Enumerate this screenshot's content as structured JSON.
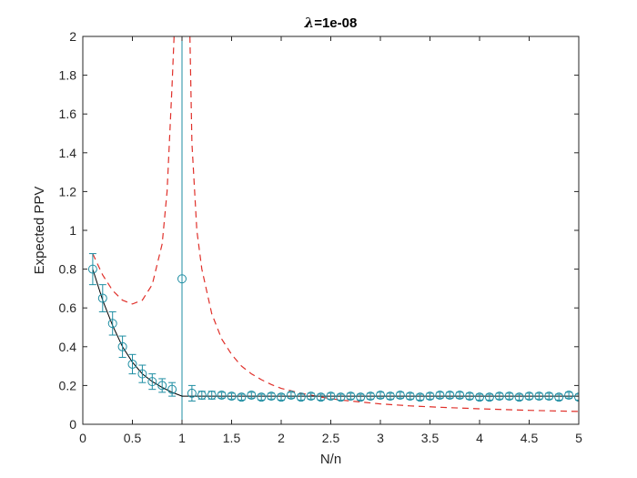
{
  "chart_data": {
    "type": "line",
    "title": "λ=1e-08",
    "title_symbol": "λ",
    "title_rest": "=1e-08",
    "xlabel": "N/n",
    "ylabel": "Expected PPV",
    "xlim": [
      0,
      5
    ],
    "ylim": [
      0,
      2
    ],
    "xticks": [
      0,
      0.5,
      1,
      1.5,
      2,
      2.5,
      3,
      3.5,
      4,
      4.5,
      5
    ],
    "xtick_labels": [
      "0",
      "0.5",
      "1",
      "1.5",
      "2",
      "2.5",
      "3",
      "3.5",
      "4",
      "4.5",
      "5"
    ],
    "yticks": [
      0,
      0.2,
      0.4,
      0.6,
      0.8,
      1,
      1.2,
      1.4,
      1.6,
      1.8,
      2
    ],
    "ytick_labels": [
      "0",
      "0.2",
      "0.4",
      "0.6",
      "0.8",
      "1",
      "1.2",
      "1.4",
      "1.6",
      "1.8",
      "2"
    ],
    "grid": false,
    "vline_x": 1,
    "colors": {
      "marker": "#1f8ea3",
      "errorbar": "#1f8ea3",
      "fit": "#000000",
      "dashed": "#e0302a",
      "vline": "#1f8ea3",
      "axes": "#262626"
    },
    "series": [
      {
        "style": "markers-with-errorbars",
        "x": [
          0.1,
          0.2,
          0.3,
          0.4,
          0.5,
          0.6,
          0.7,
          0.8,
          0.9,
          1.0,
          1.1,
          1.2,
          1.3,
          1.4,
          1.5,
          1.6,
          1.7,
          1.8,
          1.9,
          2.0,
          2.1,
          2.2,
          2.3,
          2.4,
          2.5,
          2.6,
          2.7,
          2.8,
          2.9,
          3.0,
          3.1,
          3.2,
          3.3,
          3.4,
          3.5,
          3.6,
          3.7,
          3.8,
          3.9,
          4.0,
          4.1,
          4.2,
          4.3,
          4.4,
          4.5,
          4.6,
          4.7,
          4.8,
          4.9,
          5.0
        ],
        "y": [
          0.8,
          0.65,
          0.52,
          0.4,
          0.31,
          0.26,
          0.22,
          0.2,
          0.18,
          0.75,
          0.16,
          0.15,
          0.15,
          0.15,
          0.145,
          0.14,
          0.15,
          0.14,
          0.145,
          0.14,
          0.15,
          0.14,
          0.145,
          0.14,
          0.145,
          0.14,
          0.145,
          0.14,
          0.145,
          0.15,
          0.145,
          0.15,
          0.145,
          0.14,
          0.145,
          0.15,
          0.15,
          0.15,
          0.145,
          0.14,
          0.14,
          0.145,
          0.145,
          0.14,
          0.145,
          0.145,
          0.145,
          0.14,
          0.15,
          0.14
        ],
        "err": [
          0.08,
          0.07,
          0.06,
          0.055,
          0.05,
          0.045,
          0.04,
          0.035,
          0.035,
          null,
          0.04,
          0.02,
          0.02,
          0.015,
          0.015,
          0.015,
          0.015,
          0.015,
          0.015,
          0.015,
          0.015,
          0.015,
          0.015,
          0.015,
          0.015,
          0.015,
          0.015,
          0.015,
          0.015,
          0.015,
          0.015,
          0.015,
          0.015,
          0.015,
          0.015,
          0.015,
          0.015,
          0.015,
          0.015,
          0.015,
          0.015,
          0.015,
          0.015,
          0.015,
          0.015,
          0.015,
          0.015,
          0.015,
          0.015,
          0.015
        ]
      },
      {
        "style": "solid-line",
        "x": [
          0.1,
          0.2,
          0.3,
          0.4,
          0.5,
          0.6,
          0.7,
          0.8,
          0.9,
          1.0,
          1.2,
          1.5,
          2.0,
          2.5,
          3.0,
          3.5,
          4.0,
          4.5,
          5.0
        ],
        "y": [
          0.8,
          0.64,
          0.51,
          0.4,
          0.32,
          0.26,
          0.22,
          0.19,
          0.165,
          0.145,
          0.145,
          0.145,
          0.145,
          0.145,
          0.145,
          0.145,
          0.145,
          0.145,
          0.145
        ]
      },
      {
        "style": "dashed-line",
        "segments": [
          {
            "x": [
              0.1,
              0.2,
              0.3,
              0.4,
              0.5,
              0.6,
              0.7,
              0.8,
              0.85,
              0.9,
              0.92
            ],
            "y": [
              0.88,
              0.77,
              0.69,
              0.64,
              0.62,
              0.64,
              0.72,
              0.93,
              1.2,
              1.75,
              2.0
            ]
          },
          {
            "x": [
              1.08,
              1.1,
              1.15,
              1.2,
              1.3,
              1.4,
              1.5,
              1.6,
              1.7,
              1.8,
              1.9,
              2.0,
              2.2,
              2.4,
              2.6,
              2.8,
              3.0,
              3.3,
              3.6,
              4.0,
              4.5,
              5.0
            ],
            "y": [
              2.0,
              1.45,
              1.0,
              0.8,
              0.57,
              0.44,
              0.36,
              0.3,
              0.26,
              0.23,
              0.205,
              0.185,
              0.16,
              0.14,
              0.125,
              0.115,
              0.105,
              0.095,
              0.088,
              0.08,
              0.072,
              0.066
            ]
          }
        ]
      }
    ]
  }
}
